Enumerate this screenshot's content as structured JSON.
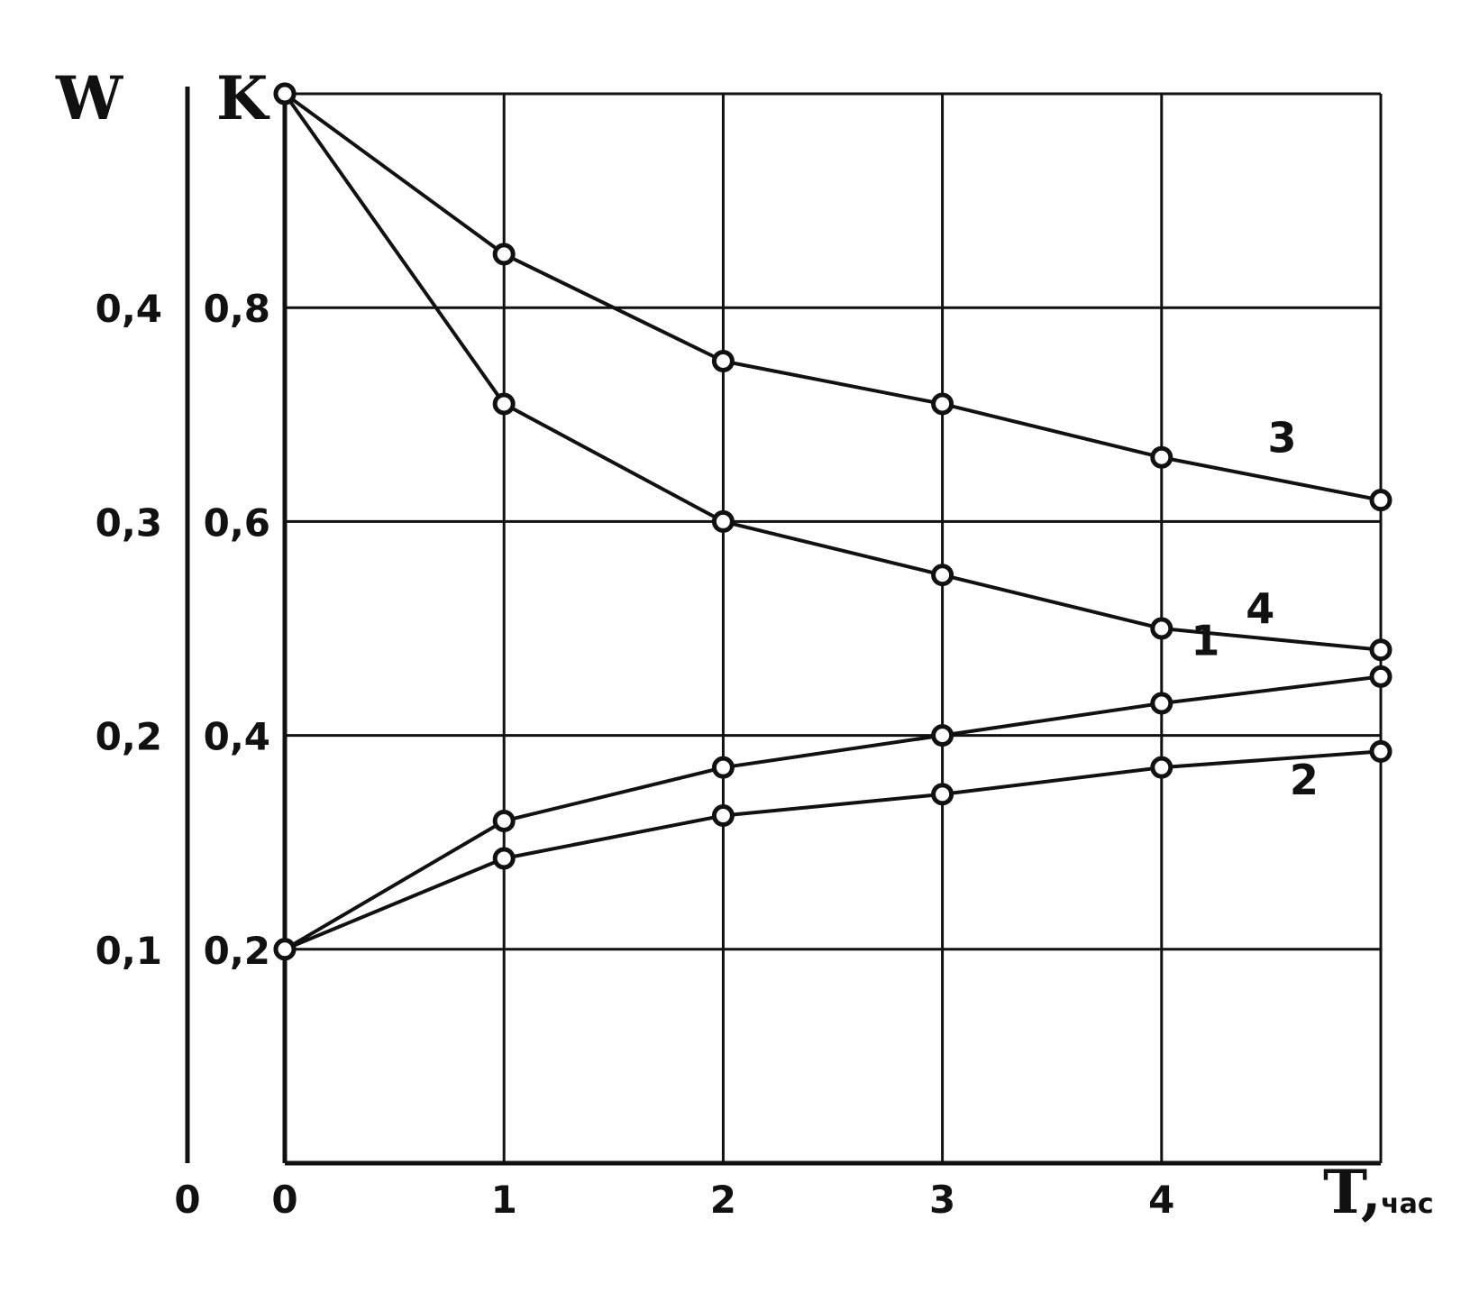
{
  "chart_data": {
    "type": "line",
    "xlabel": "T,",
    "xunit": "час",
    "ylabel_left": "W",
    "ylabel_right": "K",
    "x_ticks": [
      "0",
      "1",
      "2",
      "3",
      "4"
    ],
    "k_ticks": [
      "0,2",
      "0,4",
      "0,6",
      "0,8"
    ],
    "w_ticks": [
      "0",
      "0,1",
      "0,2",
      "0,3",
      "0,4"
    ],
    "xlim": [
      0,
      5
    ],
    "klim": [
      0,
      1.0
    ],
    "wlim": [
      0,
      0.5
    ],
    "grid": true,
    "x": [
      0,
      1,
      2,
      3,
      4,
      5
    ],
    "series": [
      {
        "name": "1",
        "values": [
          0.2,
          0.32,
          0.37,
          0.4,
          0.43,
          0.455
        ]
      },
      {
        "name": "2",
        "values": [
          0.2,
          0.285,
          0.325,
          0.345,
          0.37,
          0.385
        ]
      },
      {
        "name": "3",
        "values": [
          1.0,
          0.85,
          0.75,
          0.71,
          0.66,
          0.62
        ]
      },
      {
        "name": "4",
        "values": [
          1.0,
          0.71,
          0.6,
          0.55,
          0.5,
          0.48
        ]
      }
    ]
  }
}
